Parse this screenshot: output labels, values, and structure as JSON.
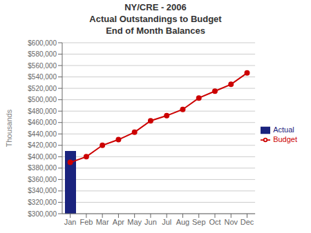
{
  "chart_data": {
    "type": "bar",
    "title": "NY/CRE - 2006\nActual Outstandings to Budget\nEnd of Month Balances",
    "ylabel": "Thousands",
    "categories": [
      "Jan",
      "Feb",
      "Mar",
      "Apr",
      "May",
      "Jun",
      "Jul",
      "Aug",
      "Sep",
      "Oct",
      "Nov",
      "Dec"
    ],
    "series": [
      {
        "name": "Actual",
        "type": "bar",
        "color": "#1a237e",
        "values": [
          410000,
          null,
          null,
          null,
          null,
          null,
          null,
          null,
          null,
          null,
          null,
          null
        ]
      },
      {
        "name": "Budget",
        "type": "line",
        "color": "#cc0000",
        "marker": "circle",
        "values": [
          390000,
          400000,
          420000,
          430000,
          443000,
          463000,
          472000,
          483000,
          503000,
          515000,
          527000,
          547000
        ]
      }
    ],
    "ylim": [
      300000,
      600000
    ],
    "yticks": [
      {
        "value": 300000,
        "label": "$300,000"
      },
      {
        "value": 320000,
        "label": "$320,000"
      },
      {
        "value": 340000,
        "label": "$340,000"
      },
      {
        "value": 360000,
        "label": "$360,000"
      },
      {
        "value": 380000,
        "label": "$380,000"
      },
      {
        "value": 400000,
        "label": "$400,000"
      },
      {
        "value": 420000,
        "label": "$420,000"
      },
      {
        "value": 440000,
        "label": "$440,000"
      },
      {
        "value": 460000,
        "label": "$460,000"
      },
      {
        "value": 480000,
        "label": "$480,000"
      },
      {
        "value": 500000,
        "label": "$500,000"
      },
      {
        "value": 520000,
        "label": "$520,000"
      },
      {
        "value": 540000,
        "label": "$540,000"
      },
      {
        "value": 560000,
        "label": "$560,000"
      },
      {
        "value": 580000,
        "label": "$580,000"
      },
      {
        "value": 600000,
        "label": "$600,000"
      }
    ],
    "grid": true,
    "legend": "right"
  }
}
